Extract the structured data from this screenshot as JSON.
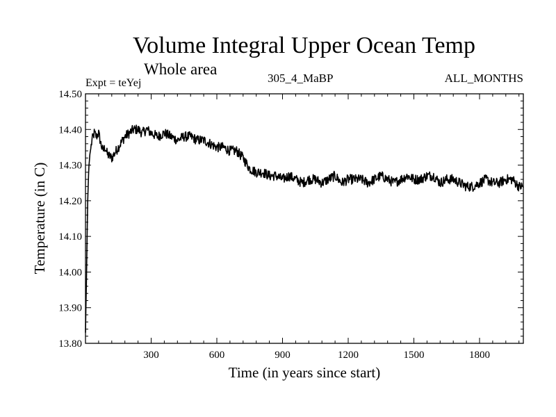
{
  "header": {
    "title": "Volume Integral Upper Ocean Temp",
    "subtitle": "Whole area",
    "expt_label": "Expt = teYej",
    "center_label": "305_4_MaBP",
    "right_label": "ALL_MONTHS"
  },
  "chart_data": {
    "type": "line",
    "title": "Volume Integral Upper Ocean Temp",
    "subtitle": "Whole area",
    "xlabel": "Time (in years since start)",
    "ylabel": "Temperature (in C)",
    "xlim": [
      0,
      2000
    ],
    "ylim": [
      13.8,
      14.5
    ],
    "xticks": [
      300,
      600,
      900,
      1200,
      1500,
      1800
    ],
    "yticks": [
      "13.80",
      "13.90",
      "14.00",
      "14.10",
      "14.20",
      "14.30",
      "14.40",
      "14.50"
    ],
    "grid": false,
    "line_color": "#000000",
    "series": [
      {
        "name": "Volume integral upper ocean temperature",
        "x": [
          0,
          5,
          10,
          15,
          20,
          30,
          40,
          50,
          60,
          70,
          80,
          90,
          100,
          120,
          140,
          160,
          180,
          200,
          220,
          240,
          260,
          280,
          300,
          330,
          360,
          390,
          420,
          450,
          480,
          510,
          540,
          570,
          600,
          630,
          660,
          690,
          720,
          750,
          780,
          810,
          840,
          870,
          900,
          930,
          960,
          990,
          1020,
          1050,
          1080,
          1110,
          1140,
          1170,
          1200,
          1230,
          1260,
          1290,
          1320,
          1350,
          1380,
          1410,
          1440,
          1470,
          1500,
          1530,
          1560,
          1590,
          1620,
          1650,
          1680,
          1710,
          1740,
          1770,
          1800,
          1830,
          1860,
          1890,
          1920,
          1950,
          1980,
          2000
        ],
        "values": [
          13.83,
          14.0,
          14.2,
          14.29,
          14.33,
          14.37,
          14.39,
          14.38,
          14.39,
          14.36,
          14.34,
          14.35,
          14.33,
          14.32,
          14.34,
          14.36,
          14.38,
          14.39,
          14.4,
          14.4,
          14.39,
          14.4,
          14.39,
          14.38,
          14.39,
          14.38,
          14.37,
          14.38,
          14.38,
          14.37,
          14.37,
          14.36,
          14.35,
          14.35,
          14.34,
          14.34,
          14.32,
          14.29,
          14.28,
          14.28,
          14.27,
          14.27,
          14.26,
          14.27,
          14.26,
          14.25,
          14.26,
          14.26,
          14.25,
          14.26,
          14.27,
          14.25,
          14.26,
          14.26,
          14.26,
          14.25,
          14.26,
          14.27,
          14.26,
          14.25,
          14.26,
          14.27,
          14.26,
          14.26,
          14.27,
          14.27,
          14.25,
          14.26,
          14.26,
          14.25,
          14.24,
          14.24,
          14.25,
          14.26,
          14.25,
          14.25,
          14.26,
          14.26,
          14.24,
          14.24
        ]
      }
    ]
  }
}
